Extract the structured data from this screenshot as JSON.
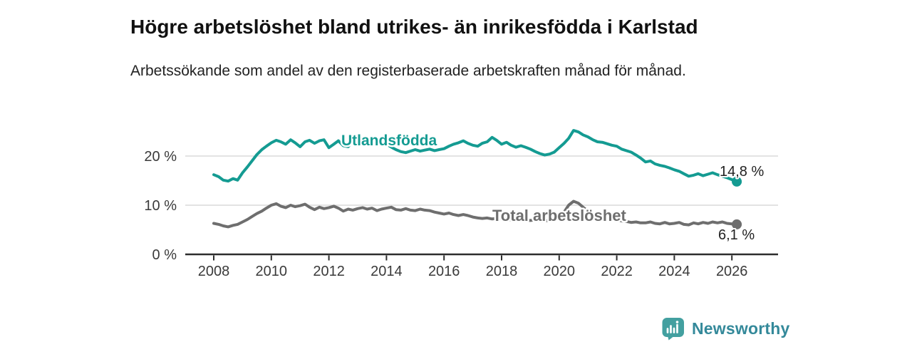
{
  "header": {
    "title": "Högre arbetslöshet bland utrikes- än inrikesfödda i Karlstad",
    "subtitle": "Arbetssökande som andel av den registerbaserade arbetskraften månad för månad."
  },
  "chart_data": {
    "type": "line",
    "title": "Högre arbetslöshet bland utrikes- än inrikesfödda i Karlstad",
    "subtitle": "Arbetssökande som andel av den registerbaserade arbetskraften månad för månad.",
    "x_unit": "year",
    "xlim": [
      2007.5,
      2027.1
    ],
    "ylim": [
      0,
      26.5
    ],
    "grid": "horizontal",
    "legend_position": "inline-labels",
    "xticks": [
      2008,
      2010,
      2012,
      2014,
      2016,
      2018,
      2020,
      2022,
      2024,
      2026
    ],
    "yticks": [
      {
        "value": 0,
        "label": "0 %"
      },
      {
        "value": 10,
        "label": "10 %"
      },
      {
        "value": 20,
        "label": "20 %"
      }
    ],
    "series": [
      {
        "name": "Utlandsfödda",
        "color": "#149b92",
        "end_label": "14,8 %",
        "end_value": 14.8,
        "points": [
          [
            2008.0,
            16.2
          ],
          [
            2008.17,
            15.8
          ],
          [
            2008.33,
            15.1
          ],
          [
            2008.5,
            14.9
          ],
          [
            2008.67,
            15.4
          ],
          [
            2008.83,
            15.1
          ],
          [
            2009.0,
            16.6
          ],
          [
            2009.17,
            17.8
          ],
          [
            2009.33,
            19.0
          ],
          [
            2009.5,
            20.3
          ],
          [
            2009.67,
            21.3
          ],
          [
            2009.83,
            22.0
          ],
          [
            2010.0,
            22.7
          ],
          [
            2010.17,
            23.2
          ],
          [
            2010.33,
            22.9
          ],
          [
            2010.5,
            22.4
          ],
          [
            2010.67,
            23.3
          ],
          [
            2010.83,
            22.7
          ],
          [
            2011.0,
            21.9
          ],
          [
            2011.17,
            22.9
          ],
          [
            2011.33,
            23.2
          ],
          [
            2011.5,
            22.6
          ],
          [
            2011.67,
            23.1
          ],
          [
            2011.83,
            23.3
          ],
          [
            2012.0,
            21.7
          ],
          [
            2012.17,
            22.4
          ],
          [
            2012.33,
            23.1
          ],
          [
            2012.5,
            22.1
          ],
          [
            2012.67,
            21.9
          ],
          [
            2012.83,
            23.1
          ],
          [
            2013.0,
            22.3
          ],
          [
            2013.17,
            22.7
          ],
          [
            2013.33,
            22.4
          ],
          [
            2013.5,
            22.6
          ],
          [
            2013.67,
            22.3
          ],
          [
            2013.83,
            22.9
          ],
          [
            2014.0,
            22.4
          ],
          [
            2014.17,
            21.8
          ],
          [
            2014.33,
            21.3
          ],
          [
            2014.5,
            20.9
          ],
          [
            2014.67,
            20.7
          ],
          [
            2014.83,
            21.0
          ],
          [
            2015.0,
            21.3
          ],
          [
            2015.17,
            21.0
          ],
          [
            2015.33,
            21.2
          ],
          [
            2015.5,
            21.4
          ],
          [
            2015.67,
            21.1
          ],
          [
            2015.83,
            21.3
          ],
          [
            2016.0,
            21.5
          ],
          [
            2016.17,
            22.0
          ],
          [
            2016.33,
            22.4
          ],
          [
            2016.5,
            22.7
          ],
          [
            2016.67,
            23.1
          ],
          [
            2016.83,
            22.6
          ],
          [
            2017.0,
            22.2
          ],
          [
            2017.17,
            22.0
          ],
          [
            2017.33,
            22.6
          ],
          [
            2017.5,
            22.9
          ],
          [
            2017.67,
            23.8
          ],
          [
            2017.83,
            23.2
          ],
          [
            2018.0,
            22.4
          ],
          [
            2018.17,
            22.8
          ],
          [
            2018.33,
            22.2
          ],
          [
            2018.5,
            21.8
          ],
          [
            2018.67,
            22.1
          ],
          [
            2018.83,
            21.8
          ],
          [
            2019.0,
            21.4
          ],
          [
            2019.17,
            20.9
          ],
          [
            2019.33,
            20.5
          ],
          [
            2019.5,
            20.2
          ],
          [
            2019.67,
            20.4
          ],
          [
            2019.83,
            20.8
          ],
          [
            2020.0,
            21.7
          ],
          [
            2020.17,
            22.6
          ],
          [
            2020.33,
            23.6
          ],
          [
            2020.5,
            25.2
          ],
          [
            2020.67,
            24.9
          ],
          [
            2020.83,
            24.3
          ],
          [
            2021.0,
            23.9
          ],
          [
            2021.17,
            23.3
          ],
          [
            2021.33,
            22.9
          ],
          [
            2021.5,
            22.8
          ],
          [
            2021.67,
            22.5
          ],
          [
            2021.83,
            22.2
          ],
          [
            2022.0,
            22.0
          ],
          [
            2022.17,
            21.4
          ],
          [
            2022.33,
            21.1
          ],
          [
            2022.5,
            20.8
          ],
          [
            2022.67,
            20.2
          ],
          [
            2022.83,
            19.6
          ],
          [
            2023.0,
            18.8
          ],
          [
            2023.17,
            19.0
          ],
          [
            2023.33,
            18.4
          ],
          [
            2023.5,
            18.1
          ],
          [
            2023.67,
            17.9
          ],
          [
            2023.83,
            17.6
          ],
          [
            2024.0,
            17.2
          ],
          [
            2024.17,
            16.9
          ],
          [
            2024.33,
            16.4
          ],
          [
            2024.5,
            15.9
          ],
          [
            2024.67,
            16.1
          ],
          [
            2024.83,
            16.4
          ],
          [
            2025.0,
            16.0
          ],
          [
            2025.17,
            16.3
          ],
          [
            2025.33,
            16.6
          ],
          [
            2025.5,
            16.2
          ],
          [
            2025.67,
            15.9
          ],
          [
            2025.83,
            15.6
          ],
          [
            2026.0,
            15.2
          ],
          [
            2026.17,
            14.8
          ]
        ]
      },
      {
        "name": "Total arbetslöshet",
        "color": "#6e6e6e",
        "end_label": "6,1 %",
        "end_value": 6.1,
        "points": [
          [
            2008.0,
            6.3
          ],
          [
            2008.17,
            6.1
          ],
          [
            2008.33,
            5.8
          ],
          [
            2008.5,
            5.6
          ],
          [
            2008.67,
            5.9
          ],
          [
            2008.83,
            6.1
          ],
          [
            2009.0,
            6.6
          ],
          [
            2009.17,
            7.1
          ],
          [
            2009.33,
            7.7
          ],
          [
            2009.5,
            8.3
          ],
          [
            2009.67,
            8.8
          ],
          [
            2009.83,
            9.4
          ],
          [
            2010.0,
            10.0
          ],
          [
            2010.17,
            10.3
          ],
          [
            2010.33,
            9.8
          ],
          [
            2010.5,
            9.5
          ],
          [
            2010.67,
            10.0
          ],
          [
            2010.83,
            9.7
          ],
          [
            2011.0,
            9.9
          ],
          [
            2011.17,
            10.2
          ],
          [
            2011.33,
            9.6
          ],
          [
            2011.5,
            9.1
          ],
          [
            2011.67,
            9.6
          ],
          [
            2011.83,
            9.3
          ],
          [
            2012.0,
            9.5
          ],
          [
            2012.17,
            9.8
          ],
          [
            2012.33,
            9.4
          ],
          [
            2012.5,
            8.8
          ],
          [
            2012.67,
            9.2
          ],
          [
            2012.83,
            9.0
          ],
          [
            2013.0,
            9.3
          ],
          [
            2013.17,
            9.5
          ],
          [
            2013.33,
            9.2
          ],
          [
            2013.5,
            9.4
          ],
          [
            2013.67,
            8.9
          ],
          [
            2013.83,
            9.2
          ],
          [
            2014.0,
            9.4
          ],
          [
            2014.17,
            9.6
          ],
          [
            2014.33,
            9.1
          ],
          [
            2014.5,
            9.0
          ],
          [
            2014.67,
            9.3
          ],
          [
            2014.83,
            9.0
          ],
          [
            2015.0,
            8.9
          ],
          [
            2015.17,
            9.2
          ],
          [
            2015.33,
            9.0
          ],
          [
            2015.5,
            8.9
          ],
          [
            2015.67,
            8.6
          ],
          [
            2015.83,
            8.4
          ],
          [
            2016.0,
            8.2
          ],
          [
            2016.17,
            8.4
          ],
          [
            2016.33,
            8.1
          ],
          [
            2016.5,
            7.9
          ],
          [
            2016.67,
            8.1
          ],
          [
            2016.83,
            7.9
          ],
          [
            2017.0,
            7.6
          ],
          [
            2017.17,
            7.4
          ],
          [
            2017.33,
            7.3
          ],
          [
            2017.5,
            7.4
          ],
          [
            2017.67,
            7.2
          ],
          [
            2017.83,
            7.3
          ],
          [
            2018.0,
            7.3
          ],
          [
            2018.17,
            7.2
          ],
          [
            2018.33,
            7.0
          ],
          [
            2018.5,
            7.2
          ],
          [
            2018.67,
            7.1
          ],
          [
            2018.83,
            6.9
          ],
          [
            2019.0,
            6.9
          ],
          [
            2019.17,
            7.0
          ],
          [
            2019.33,
            6.8
          ],
          [
            2019.5,
            6.8
          ],
          [
            2019.67,
            6.9
          ],
          [
            2019.83,
            7.0
          ],
          [
            2020.0,
            7.3
          ],
          [
            2020.17,
            8.6
          ],
          [
            2020.33,
            10.0
          ],
          [
            2020.5,
            10.8
          ],
          [
            2020.67,
            10.4
          ],
          [
            2020.83,
            9.6
          ],
          [
            2021.0,
            8.8
          ],
          [
            2021.17,
            8.3
          ],
          [
            2021.33,
            7.9
          ],
          [
            2021.5,
            7.6
          ],
          [
            2021.67,
            7.3
          ],
          [
            2021.83,
            7.1
          ],
          [
            2022.0,
            7.0
          ],
          [
            2022.17,
            6.8
          ],
          [
            2022.33,
            6.7
          ],
          [
            2022.5,
            6.5
          ],
          [
            2022.67,
            6.6
          ],
          [
            2022.83,
            6.4
          ],
          [
            2023.0,
            6.4
          ],
          [
            2023.17,
            6.6
          ],
          [
            2023.33,
            6.3
          ],
          [
            2023.5,
            6.2
          ],
          [
            2023.67,
            6.5
          ],
          [
            2023.83,
            6.2
          ],
          [
            2024.0,
            6.3
          ],
          [
            2024.17,
            6.5
          ],
          [
            2024.33,
            6.1
          ],
          [
            2024.5,
            6.0
          ],
          [
            2024.67,
            6.4
          ],
          [
            2024.83,
            6.2
          ],
          [
            2025.0,
            6.5
          ],
          [
            2025.17,
            6.3
          ],
          [
            2025.33,
            6.6
          ],
          [
            2025.5,
            6.4
          ],
          [
            2025.67,
            6.6
          ],
          [
            2025.83,
            6.3
          ],
          [
            2026.0,
            6.2
          ],
          [
            2026.17,
            6.1
          ]
        ]
      }
    ]
  },
  "colors": {
    "series_foreign_born": "#149b92",
    "series_total": "#6e6e6e",
    "gridline": "#dadada",
    "axis": "#2d2d2d",
    "axis_text": "#3a3a3a",
    "title_text": "#111111",
    "body_text": "#222222",
    "logo_icon": "#43a0a0",
    "logo_text": "#34899a"
  },
  "footer": {
    "logo_text": "Newsworthy",
    "logo_icon": "bar-chart-speech-bubble-icon"
  }
}
